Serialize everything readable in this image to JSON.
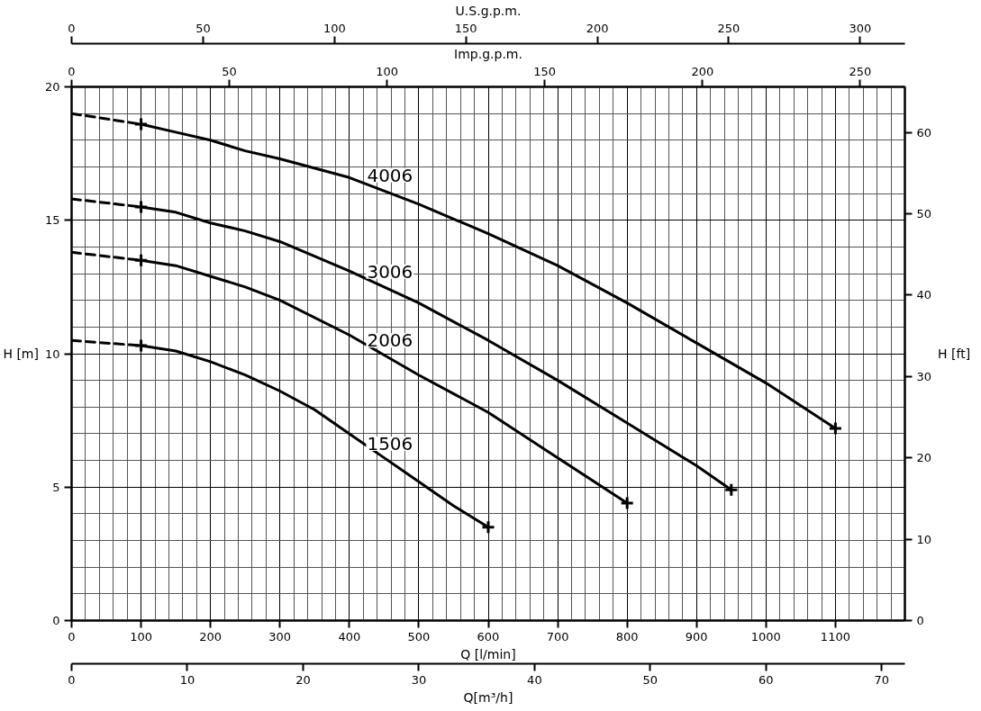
{
  "chart_data": {
    "type": "line",
    "xlabel": "Q [l/min]",
    "ylabel": "H [m]",
    "y2label": "H [ft]",
    "x2label": "U.S.g.p.m.",
    "xlim": [
      0,
      1200
    ],
    "xticks": [
      0,
      {
        "value": 20,
        "label": null
      },
      {
        "value": 40,
        "label": null
      },
      {
        "value": 60,
        "label": null
      },
      {
        "value": 80,
        "label": null
      },
      100,
      {
        "value": 120,
        "label": null
      },
      {
        "value": 140,
        "label": null
      },
      {
        "value": 160,
        "label": null
      },
      {
        "value": 180,
        "label": null
      },
      200,
      {
        "value": 220,
        "label": null
      },
      {
        "value": 240,
        "label": null
      },
      {
        "value": 260,
        "label": null
      },
      {
        "value": 280,
        "label": null
      },
      300,
      {
        "value": 320,
        "label": null
      },
      {
        "value": 340,
        "label": null
      },
      {
        "value": 360,
        "label": null
      },
      {
        "value": 380,
        "label": null
      },
      400,
      {
        "value": 420,
        "label": null
      },
      {
        "value": 440,
        "label": null
      },
      {
        "value": 460,
        "label": null
      },
      {
        "value": 480,
        "label": null
      },
      500,
      {
        "value": 520,
        "label": null
      },
      {
        "value": 540,
        "label": null
      },
      {
        "value": 560,
        "label": null
      },
      {
        "value": 580,
        "label": null
      },
      600,
      {
        "value": 620,
        "label": null
      },
      {
        "value": 640,
        "label": null
      },
      {
        "value": 660,
        "label": null
      },
      {
        "value": 680,
        "label": null
      },
      700,
      {
        "value": 720,
        "label": null
      },
      {
        "value": 740,
        "label": null
      },
      {
        "value": 760,
        "label": null
      },
      {
        "value": 780,
        "label": null
      },
      800,
      {
        "value": 820,
        "label": null
      },
      {
        "value": 840,
        "label": null
      },
      {
        "value": 860,
        "label": null
      },
      {
        "value": 880,
        "label": null
      },
      900,
      {
        "value": 920,
        "label": null
      },
      {
        "value": 940,
        "label": null
      },
      {
        "value": 960,
        "label": null
      },
      {
        "value": 980,
        "label": null
      },
      1000,
      {
        "value": 1020,
        "label": null
      },
      {
        "value": 1040,
        "label": null
      },
      {
        "value": 1060,
        "label": null
      },
      {
        "value": 1080,
        "label": null
      },
      1100,
      {
        "value": 1120,
        "label": null
      },
      {
        "value": 1140,
        "label": null
      },
      {
        "value": 1160,
        "label": null
      },
      {
        "value": 1180,
        "label": null
      }
    ],
    "ylim": [
      0,
      20
    ],
    "yticks": [
      0,
      {
        "value": 1,
        "label": null
      },
      {
        "value": 2,
        "label": null
      },
      {
        "value": 3,
        "label": null
      },
      {
        "value": 4,
        "label": null
      },
      5,
      {
        "value": 6,
        "label": null
      },
      {
        "value": 7,
        "label": null
      },
      {
        "value": 8,
        "label": null
      },
      {
        "value": 9,
        "label": null
      },
      10,
      {
        "value": 11,
        "label": null
      },
      {
        "value": 12,
        "label": null
      },
      {
        "value": 13,
        "label": null
      },
      {
        "value": 14,
        "label": null
      },
      15,
      {
        "value": 16,
        "label": null
      },
      {
        "value": 17,
        "label": null
      },
      {
        "value": 18,
        "label": null
      },
      {
        "value": 19,
        "label": null
      },
      20
    ],
    "y2lim": [
      0,
      65.6
    ],
    "y2ticks": [
      0,
      10,
      20,
      30,
      40,
      50,
      60
    ],
    "x2lim": [
      0,
      317
    ],
    "x2ticks": [
      0,
      50,
      100,
      150,
      200,
      250,
      300
    ],
    "grid": true,
    "annotations": [
      "Imp.g.p.m.",
      "0",
      "50",
      "100",
      "150",
      "200",
      "250",
      "Q[m³/h]",
      "0",
      "10",
      "20",
      "30",
      "40",
      "50",
      "60",
      "70"
    ],
    "series": [
      {
        "color": "#000000",
        "line_style": "dashed",
        "x": [
          0,
          100
        ],
        "values": [
          19.0,
          18.6
        ]
      },
      {
        "name": "4006",
        "color": "#000000",
        "x": [
          100,
          150,
          200,
          250,
          300,
          400,
          500,
          600,
          700,
          800,
          900,
          1000,
          1100
        ],
        "values": [
          18.6,
          18.3,
          18.0,
          17.6,
          17.3,
          16.6,
          15.6,
          14.5,
          13.3,
          11.9,
          10.4,
          8.9,
          7.2
        ]
      },
      {
        "color": "#000000",
        "line_style": "dashed",
        "x": [
          0,
          100
        ],
        "values": [
          15.8,
          15.5
        ]
      },
      {
        "name": "3006",
        "color": "#000000",
        "x": [
          100,
          150,
          200,
          250,
          300,
          400,
          500,
          600,
          700,
          800,
          900,
          950
        ],
        "values": [
          15.5,
          15.3,
          14.9,
          14.6,
          14.2,
          13.1,
          11.9,
          10.5,
          9.0,
          7.4,
          5.8,
          4.9
        ]
      },
      {
        "color": "#000000",
        "line_style": "dashed",
        "x": [
          0,
          100
        ],
        "values": [
          13.8,
          13.5
        ]
      },
      {
        "name": "2006",
        "color": "#000000",
        "x": [
          100,
          150,
          200,
          250,
          300,
          400,
          500,
          600,
          700,
          800
        ],
        "values": [
          13.5,
          13.3,
          12.9,
          12.5,
          12.0,
          10.7,
          9.2,
          7.8,
          6.1,
          4.4
        ]
      },
      {
        "color": "#000000",
        "line_style": "dashed",
        "x": [
          0,
          100
        ],
        "values": [
          10.5,
          10.3
        ]
      },
      {
        "name": "1506",
        "color": "#000000",
        "x": [
          100,
          150,
          200,
          250,
          300,
          350,
          400,
          450,
          500,
          550,
          600
        ],
        "values": [
          10.3,
          10.1,
          9.7,
          9.2,
          8.6,
          7.9,
          7.0,
          6.1,
          5.2,
          4.3,
          3.5
        ]
      },
      {
        "type": "scatter",
        "marker": "cross",
        "color": "#000000",
        "x": [
          100,
          1100,
          100,
          950,
          100,
          800,
          100,
          600
        ],
        "values": [
          18.6,
          7.2,
          15.5,
          4.9,
          13.5,
          4.4,
          10.3,
          3.5
        ]
      }
    ]
  }
}
